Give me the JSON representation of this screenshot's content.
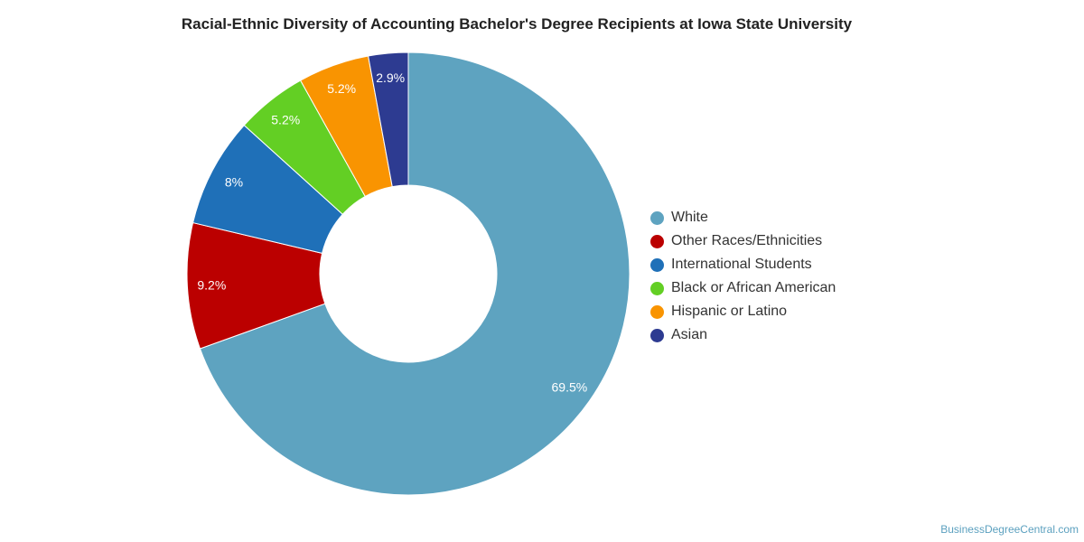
{
  "chart_data": {
    "type": "pie",
    "variant": "donut",
    "title": "Racial-Ethnic Diversity of Accounting Bachelor's Degree Recipients at Iowa State University",
    "unit": "%",
    "legend_position": "right",
    "slices": [
      {
        "name": "White",
        "value": 69.5,
        "label": "69.5%",
        "color": "#5ea3c0"
      },
      {
        "name": "Other Races/Ethnicities",
        "value": 9.2,
        "label": "9.2%",
        "color": "#bb0000"
      },
      {
        "name": "International Students",
        "value": 8,
        "label": "8%",
        "color": "#1f70b8"
      },
      {
        "name": "Black or African American",
        "value": 5.2,
        "label": "5.2%",
        "color": "#63cf24"
      },
      {
        "name": "Hispanic or Latino",
        "value": 5.2,
        "label": "5.2%",
        "color": "#f99401"
      },
      {
        "name": "Asian",
        "value": 2.9,
        "label": "2.9%",
        "color": "#2d3b91"
      }
    ]
  },
  "footer": {
    "source": "BusinessDegreeCentral.com"
  }
}
